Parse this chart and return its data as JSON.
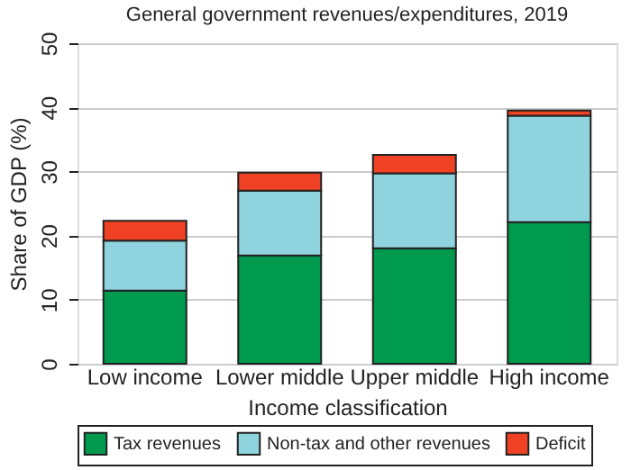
{
  "chart_data": {
    "type": "bar",
    "title": "General government revenues/expenditures, 2019",
    "xlabel": "Income classification",
    "ylabel": "Share of GDP (%)",
    "categories": [
      "Low income",
      "Lower middle",
      "Upper middle",
      "High income"
    ],
    "stacked": true,
    "series": [
      {
        "name": "Tax revenues",
        "color": "#009a4e",
        "values": [
          11.4,
          16.9,
          18.0,
          22.1
        ]
      },
      {
        "name": "Non-tax and other revenues",
        "color": "#8fd3df",
        "values": [
          7.8,
          10.1,
          11.7,
          16.6
        ]
      },
      {
        "name": "Deficit",
        "color": "#ef4123",
        "values": [
          3.1,
          2.8,
          2.9,
          0.8
        ]
      }
    ],
    "ylim": [
      0,
      50
    ],
    "yticks": [
      0,
      10,
      20,
      30,
      40,
      50
    ],
    "grid": "y",
    "legend": "bottom"
  }
}
